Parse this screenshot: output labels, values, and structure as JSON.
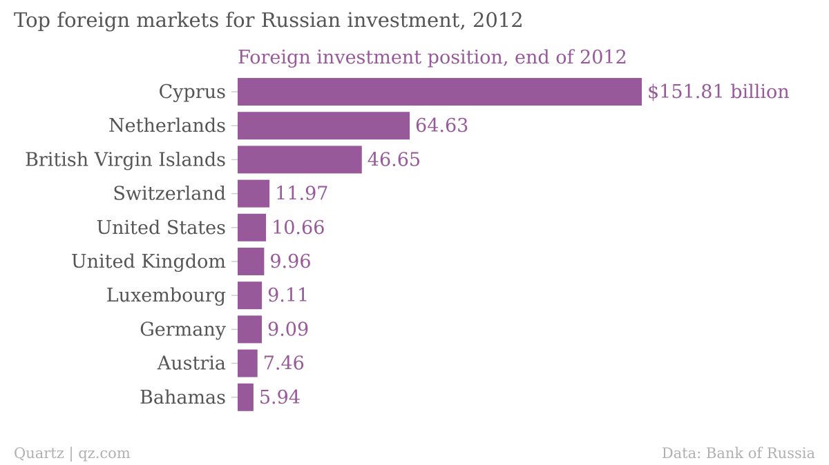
{
  "title": "Top foreign markets for Russian investment, 2012",
  "footer": {
    "source_left": "Quartz | qz.com",
    "source_right": "Data: Bank of Russia"
  },
  "colors": {
    "bar": "#98599a",
    "label_text": "#555555",
    "footer_text": "#b0b0b0",
    "tick": "#cccccc"
  },
  "chart_data": {
    "type": "bar",
    "orientation": "horizontal",
    "title": "Top foreign markets for Russian investment, 2012",
    "categories": [
      "Cyprus",
      "Netherlands",
      "British Virgin Islands",
      "Switzerland",
      "United States",
      "United Kingdom",
      "Luxembourg",
      "Germany",
      "Austria",
      "Bahamas"
    ],
    "series": [
      {
        "name": "Foreign investment position, end of 2012",
        "values": [
          151.81,
          64.63,
          46.65,
          11.97,
          10.66,
          9.96,
          9.11,
          9.09,
          7.46,
          5.94
        ],
        "value_labels": [
          "$151.81 billion",
          "64.63",
          "46.65",
          "11.97",
          "10.66",
          "9.96",
          "9.11",
          "9.09",
          "7.46",
          "5.94"
        ]
      }
    ],
    "xlim": [
      0,
      151.81
    ],
    "grid": false,
    "legend": "none"
  }
}
